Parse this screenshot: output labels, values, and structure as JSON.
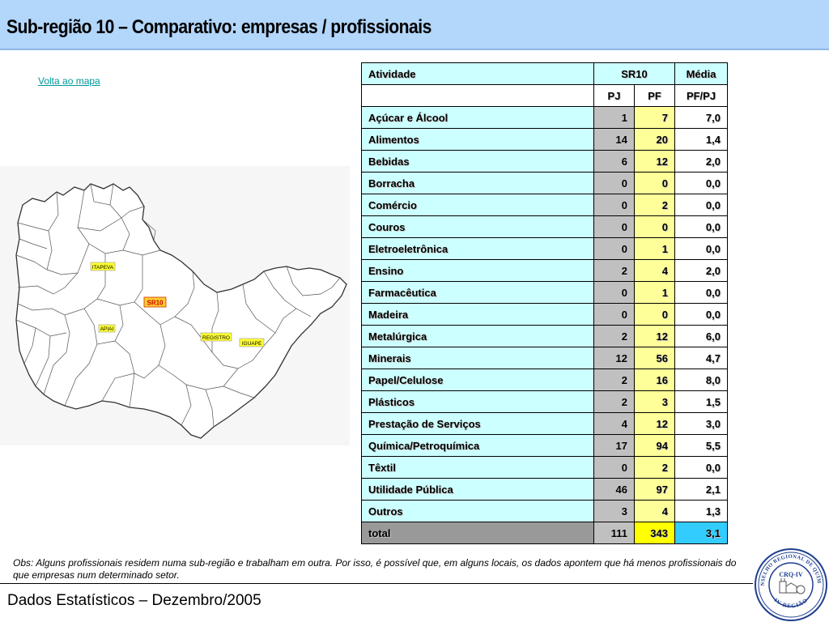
{
  "header": {
    "title": "Sub-região 10 – Comparativo: empresas / profissionais",
    "bg_color": "#b3d6fb"
  },
  "nav": {
    "back_link": "Volta ao mapa"
  },
  "map": {
    "labels": {
      "itapeva": "ITAPEVA",
      "sr10": "SR10",
      "apiai": "APIAI",
      "registro": "REGISTRO",
      "iguape": "IGUAPE"
    }
  },
  "table": {
    "headers": {
      "activity": "Atividade",
      "group": "SR10",
      "avg": "Média",
      "pj": "PJ",
      "pf": "PF",
      "ratio": "PF/PJ"
    },
    "rows": [
      {
        "activity": "Açúcar e Álcool",
        "pj": "1",
        "pf": "7",
        "ratio": "7,0"
      },
      {
        "activity": "Alimentos",
        "pj": "14",
        "pf": "20",
        "ratio": "1,4"
      },
      {
        "activity": "Bebidas",
        "pj": "6",
        "pf": "12",
        "ratio": "2,0"
      },
      {
        "activity": "Borracha",
        "pj": "0",
        "pf": "0",
        "ratio": "0,0"
      },
      {
        "activity": "Comércio",
        "pj": "0",
        "pf": "2",
        "ratio": "0,0"
      },
      {
        "activity": "Couros",
        "pj": "0",
        "pf": "0",
        "ratio": "0,0"
      },
      {
        "activity": "Eletroeletrônica",
        "pj": "0",
        "pf": "1",
        "ratio": "0,0"
      },
      {
        "activity": "Ensino",
        "pj": "2",
        "pf": "4",
        "ratio": "2,0"
      },
      {
        "activity": "Farmacêutica",
        "pj": "0",
        "pf": "1",
        "ratio": "0,0"
      },
      {
        "activity": "Madeira",
        "pj": "0",
        "pf": "0",
        "ratio": "0,0"
      },
      {
        "activity": "Metalúrgica",
        "pj": "2",
        "pf": "12",
        "ratio": "6,0"
      },
      {
        "activity": "Minerais",
        "pj": "12",
        "pf": "56",
        "ratio": "4,7"
      },
      {
        "activity": "Papel/Celulose",
        "pj": "2",
        "pf": "16",
        "ratio": "8,0"
      },
      {
        "activity": "Plásticos",
        "pj": "2",
        "pf": "3",
        "ratio": "1,5"
      },
      {
        "activity": "Prestação de Serviços",
        "pj": "4",
        "pf": "12",
        "ratio": "3,0"
      },
      {
        "activity": "Química/Petroquímica",
        "pj": "17",
        "pf": "94",
        "ratio": "5,5"
      },
      {
        "activity": "Têxtil",
        "pj": "0",
        "pf": "2",
        "ratio": "0,0"
      },
      {
        "activity": "Utilidade Pública",
        "pj": "46",
        "pf": "97",
        "ratio": "2,1"
      },
      {
        "activity": "Outros",
        "pj": "3",
        "pf": "4",
        "ratio": "1,3"
      }
    ],
    "total": {
      "activity": "total",
      "pj": "111",
      "pf": "343",
      "ratio": "3,1"
    }
  },
  "note": "Obs: Alguns profissionais residem numa sub-região e trabalham em outra. Por isso, é possível que, em alguns locais, os dados apontem que há menos profissionais do que empresas num determinado setor.",
  "footer": {
    "text": "Dados Estatísticos – Dezembro/2005"
  },
  "seal": {
    "top_text": "CONSELHO REGIONAL DE QUÍMICA",
    "center_text": "CRQ-IV",
    "bottom_text": "IV REGIÃO"
  }
}
